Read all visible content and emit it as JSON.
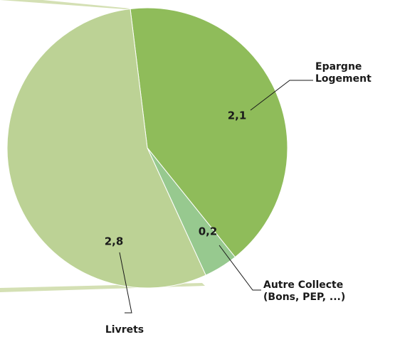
{
  "chart_data": {
    "type": "pie",
    "categories": [
      "Epargne Logement",
      "Autre Collecte (Bons, PEP, ...)",
      "Livrets"
    ],
    "values": [
      2.1,
      0.2,
      2.8
    ],
    "value_labels": [
      "2,1",
      "0,2",
      "2,8"
    ],
    "colors": [
      "#8fbc5a",
      "#97c98f",
      "#bcd295"
    ]
  }
}
